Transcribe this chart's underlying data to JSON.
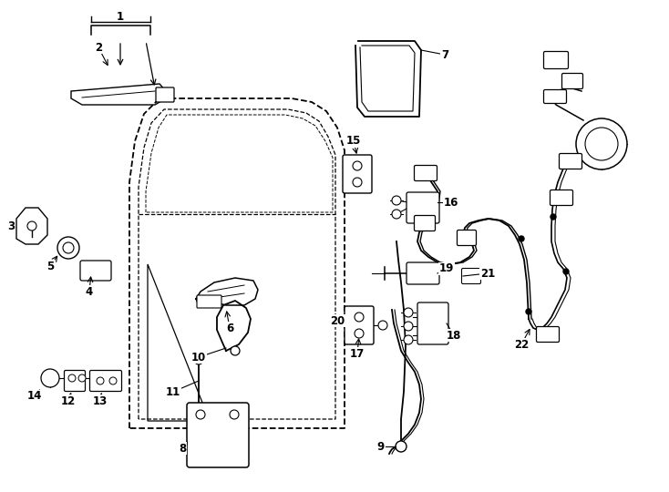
{
  "background_color": "#ffffff",
  "line_color": "#000000",
  "figsize": [
    7.34,
    5.4
  ],
  "dpi": 100
}
